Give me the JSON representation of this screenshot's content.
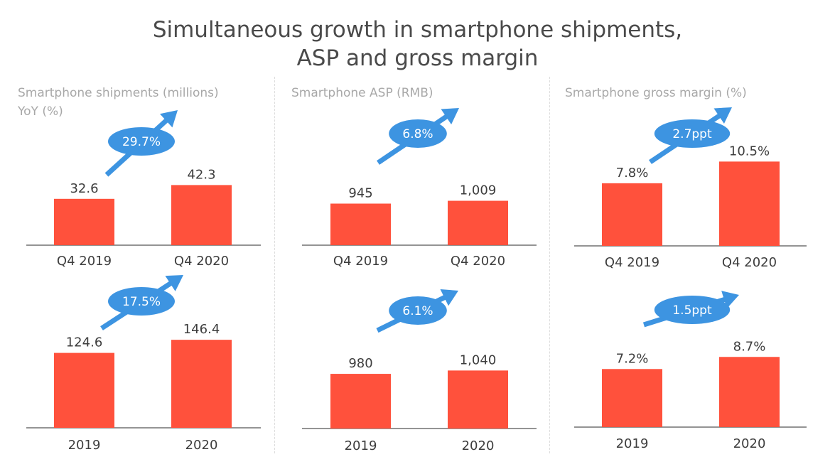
{
  "title": {
    "line1": "Simultaneous growth in smartphone shipments,",
    "line2": "ASP and gross margin"
  },
  "colors": {
    "bar": "#ff513c",
    "arrow": "#3d94e1",
    "axis": "#555555",
    "text": "#3d3d3d",
    "subtitle": "#a8a8a8"
  },
  "panels": [
    {
      "title_line1": "Smartphone shipments (millions)",
      "title_line2": "YoY (%)"
    },
    {
      "title_line1": "Smartphone ASP (RMB)",
      "title_line2": ""
    },
    {
      "title_line1": "Smartphone gross margin (%)",
      "title_line2": ""
    }
  ],
  "chart_data": [
    {
      "type": "bar",
      "metric": "shipments",
      "categories": [
        "Q4 2019",
        "Q4 2020"
      ],
      "values": [
        32.6,
        42.3
      ],
      "value_labels": [
        "32.6",
        "42.3"
      ],
      "growth_label": "29.7%"
    },
    {
      "type": "bar",
      "metric": "ASP",
      "categories": [
        "Q4 2019",
        "Q4 2020"
      ],
      "values": [
        945,
        1009
      ],
      "value_labels": [
        "945",
        "1,009"
      ],
      "growth_label": "6.8%"
    },
    {
      "type": "bar",
      "metric": "gross margin",
      "categories": [
        "Q4 2019",
        "Q4 2020"
      ],
      "values": [
        7.8,
        10.5
      ],
      "value_labels": [
        "7.8%",
        "10.5%"
      ],
      "growth_label": "2.7ppt"
    },
    {
      "type": "bar",
      "metric": "shipments",
      "categories": [
        "2019",
        "2020"
      ],
      "values": [
        124.6,
        146.4
      ],
      "value_labels": [
        "124.6",
        "146.4"
      ],
      "growth_label": "17.5%"
    },
    {
      "type": "bar",
      "metric": "ASP",
      "categories": [
        "2019",
        "2020"
      ],
      "values": [
        980,
        1040
      ],
      "value_labels": [
        "980",
        "1,040"
      ],
      "growth_label": "6.1%"
    },
    {
      "type": "bar",
      "metric": "gross margin",
      "categories": [
        "2019",
        "2020"
      ],
      "values": [
        7.2,
        8.7
      ],
      "value_labels": [
        "7.2%",
        "8.7%"
      ],
      "growth_label": "1.5ppt"
    }
  ]
}
